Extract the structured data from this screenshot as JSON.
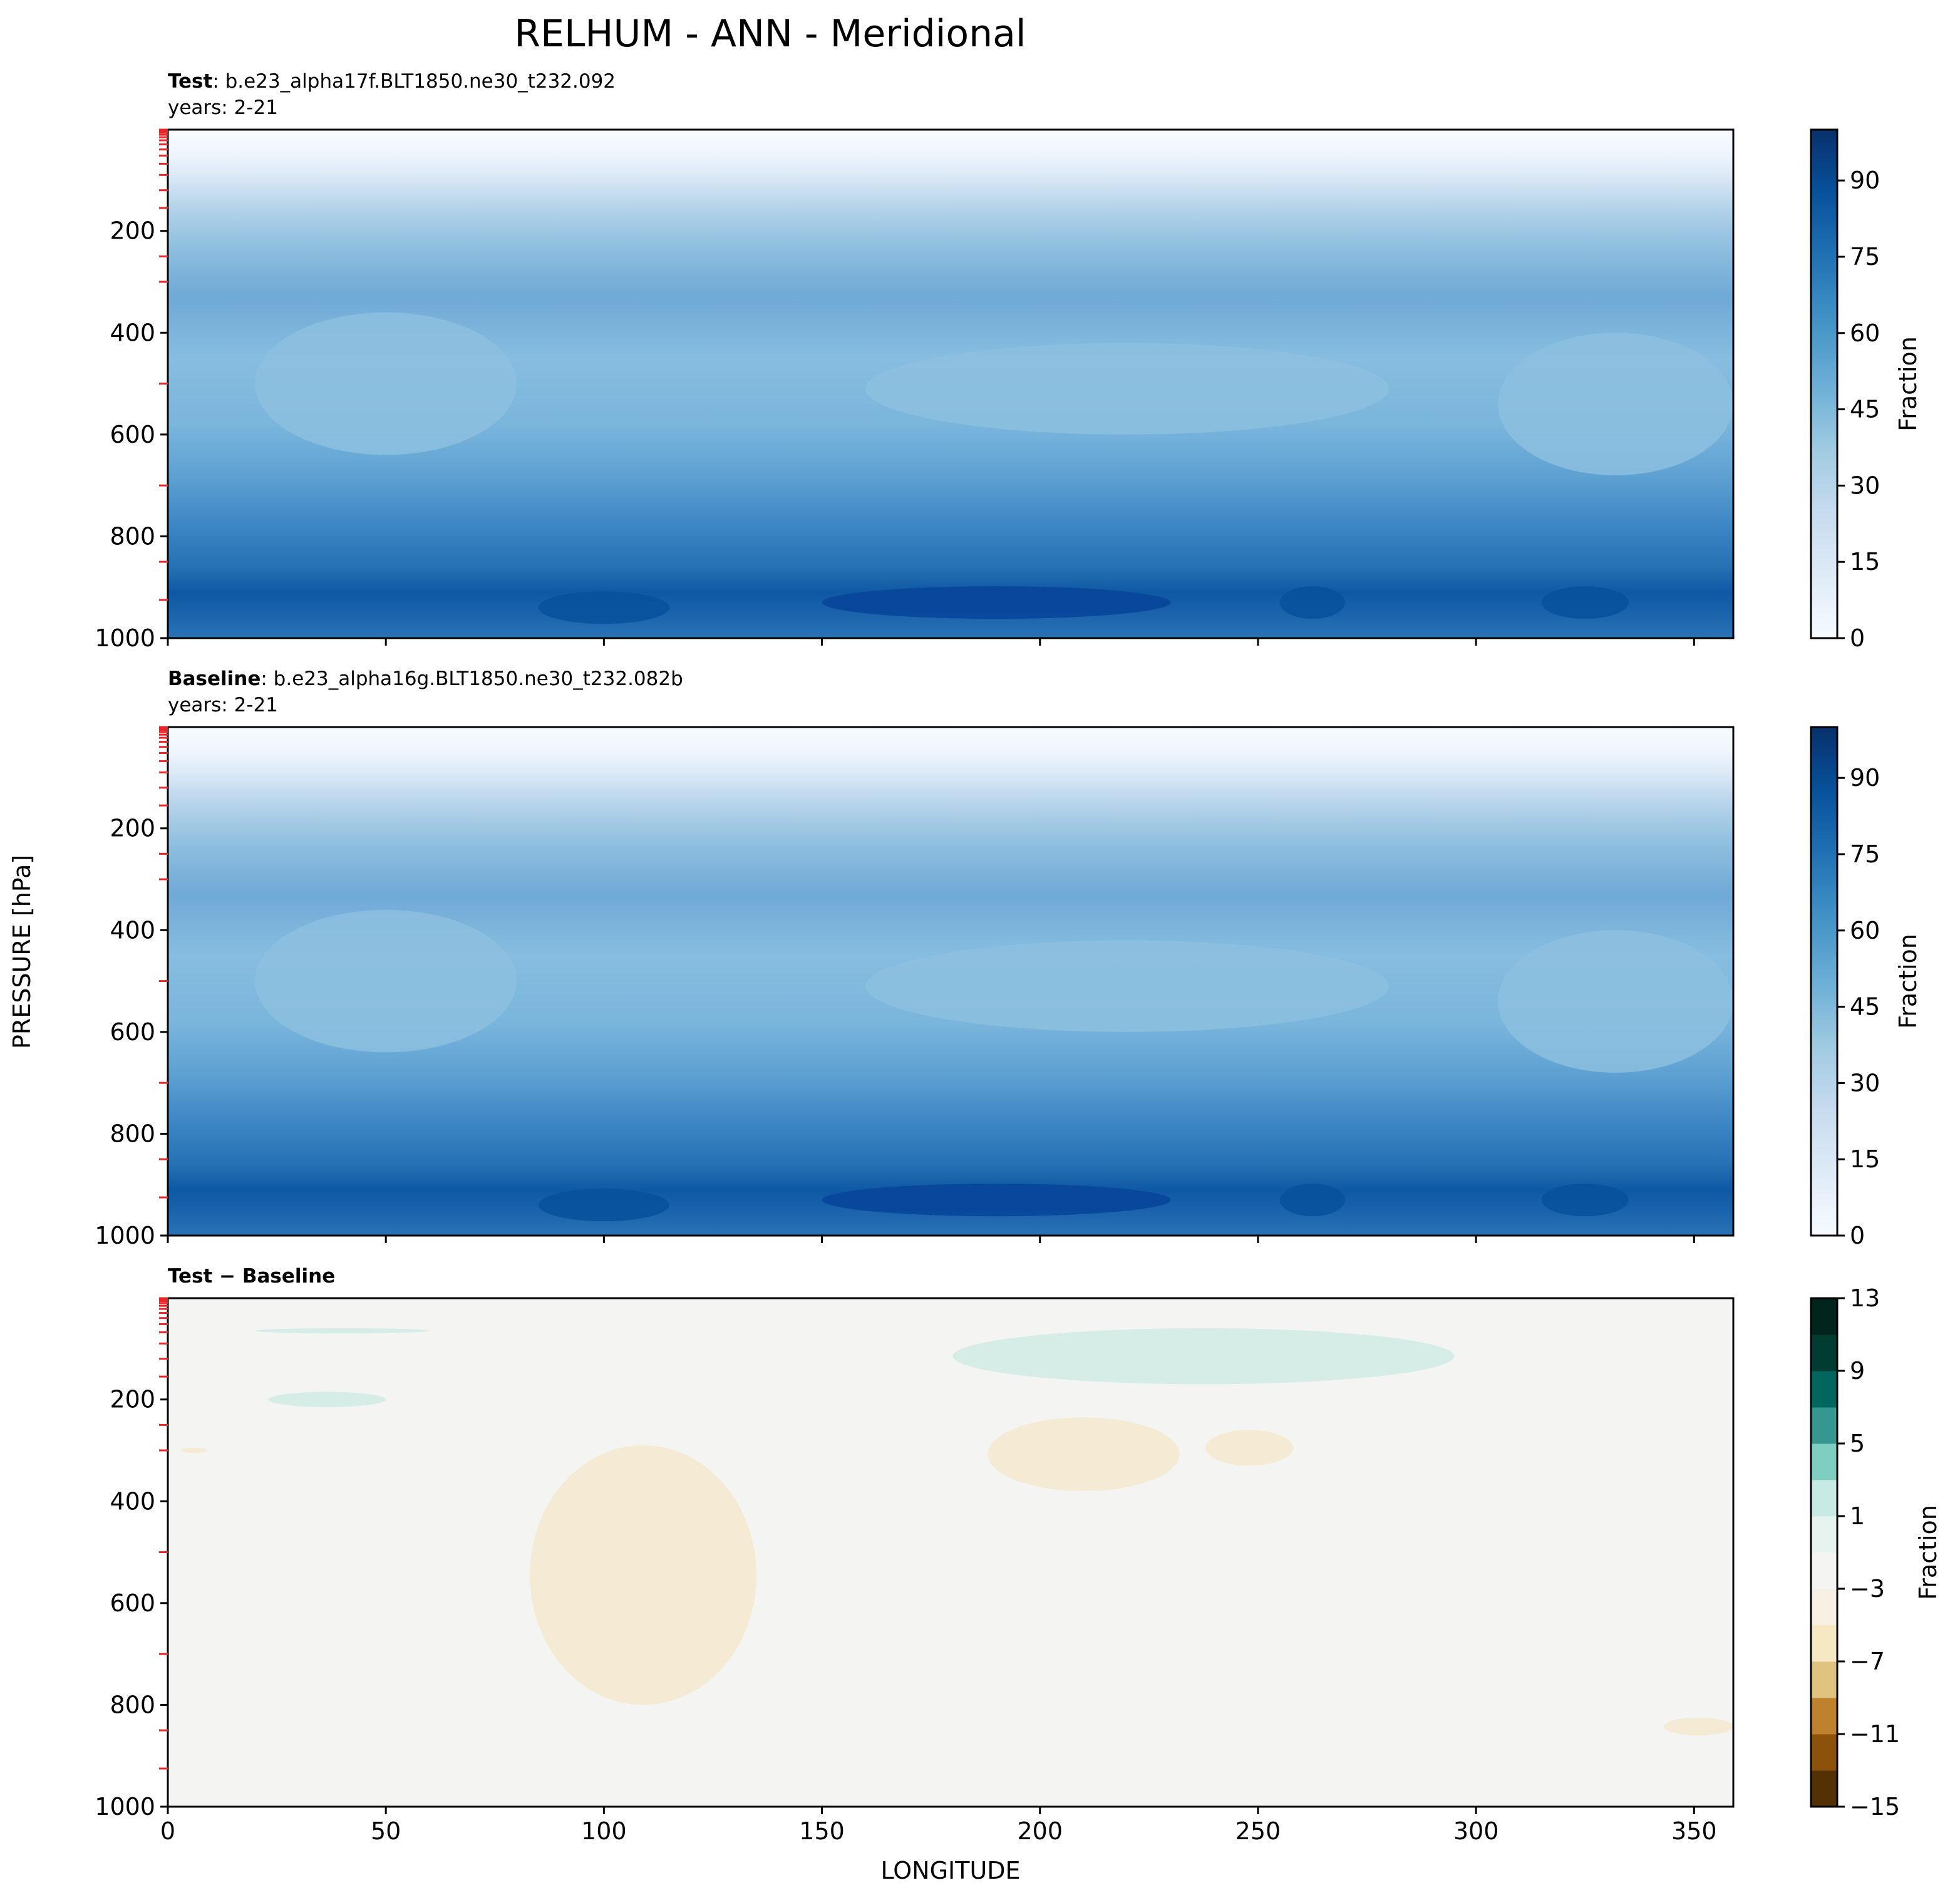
{
  "figure": {
    "title": "RELHUM - ANN - Meridional",
    "ylabel": "PRESSURE [hPa]",
    "xlabel": "LONGITUDE"
  },
  "chart_data": [
    {
      "type": "heatmap",
      "panel": "test",
      "label_bold": "Test",
      "label_text": ": b.e23_alpha17f.BLT1850.ne30_t232.092",
      "years": "years: 2-21",
      "x_range": [
        0,
        359
      ],
      "y_range": [
        1000,
        1
      ],
      "y_ticks": [
        200,
        400,
        600,
        800,
        1000
      ],
      "x_ticks": [
        0,
        50,
        100,
        150,
        200,
        250,
        300,
        350
      ],
      "x_tick_labels_visible": false,
      "colormap": "Blues",
      "colorbar": {
        "label": "Fraction",
        "min": 0,
        "max": 100,
        "levels": [
          0,
          5,
          10,
          15,
          20,
          25,
          30,
          35,
          40,
          45,
          50,
          55,
          60,
          65,
          70,
          75,
          80,
          85,
          90,
          95,
          100
        ],
        "ticks": [
          0,
          15,
          30,
          45,
          60,
          75,
          90
        ]
      },
      "profile": {
        "pressure": [
          1,
          50,
          100,
          150,
          200,
          250,
          300,
          400,
          500,
          600,
          700,
          800,
          850,
          900,
          925,
          950,
          1000
        ],
        "value": [
          2,
          5,
          15,
          30,
          40,
          50,
          55,
          45,
          45,
          50,
          55,
          62,
          67,
          72,
          80,
          82,
          75
        ]
      }
    },
    {
      "type": "heatmap",
      "panel": "baseline",
      "label_bold": "Baseline",
      "label_text": ": b.e23_alpha16g.BLT1850.ne30_t232.082b",
      "years": "years: 2-21",
      "x_range": [
        0,
        359
      ],
      "y_range": [
        1000,
        1
      ],
      "y_ticks": [
        200,
        400,
        600,
        800,
        1000
      ],
      "x_ticks": [
        0,
        50,
        100,
        150,
        200,
        250,
        300,
        350
      ],
      "x_tick_labels_visible": false,
      "colormap": "Blues",
      "colorbar": {
        "label": "Fraction",
        "min": 0,
        "max": 100,
        "levels": [
          0,
          5,
          10,
          15,
          20,
          25,
          30,
          35,
          40,
          45,
          50,
          55,
          60,
          65,
          70,
          75,
          80,
          85,
          90,
          95,
          100
        ],
        "ticks": [
          0,
          15,
          30,
          45,
          60,
          75,
          90
        ]
      },
      "profile": {
        "pressure": [
          1,
          50,
          100,
          150,
          200,
          250,
          300,
          400,
          500,
          600,
          700,
          800,
          850,
          900,
          925,
          950,
          1000
        ],
        "value": [
          2,
          5,
          15,
          30,
          40,
          50,
          55,
          45,
          45,
          50,
          55,
          62,
          67,
          72,
          80,
          82,
          75
        ]
      }
    },
    {
      "type": "heatmap",
      "panel": "difference",
      "label_bold": "Test − Baseline",
      "x_range": [
        0,
        359
      ],
      "y_range": [
        1000,
        1
      ],
      "y_ticks": [
        200,
        400,
        600,
        800,
        1000
      ],
      "x_ticks": [
        0,
        50,
        100,
        150,
        200,
        250,
        300,
        350
      ],
      "x_tick_labels_visible": true,
      "colormap": "BrBG",
      "colorbar": {
        "label": "Fraction",
        "min": -15,
        "max": 13,
        "levels": [
          -15,
          -13,
          -11,
          -9,
          -7,
          -5,
          -3,
          -1,
          1,
          3,
          5,
          7,
          9,
          11,
          13
        ],
        "ticks": [
          -15,
          -11,
          -7,
          -3,
          1,
          5,
          9,
          13
        ]
      },
      "regions": [
        {
          "sign": "positive",
          "lon": [
            180,
            295
          ],
          "pressure": [
            60,
            170
          ]
        },
        {
          "sign": "positive",
          "lon": [
            20,
            60
          ],
          "pressure": [
            60,
            70
          ]
        },
        {
          "sign": "positive",
          "lon": [
            23,
            50
          ],
          "pressure": [
            185,
            215
          ]
        },
        {
          "sign": "negative",
          "lon": [
            83,
            135
          ],
          "pressure": [
            290,
            800
          ]
        },
        {
          "sign": "negative",
          "lon": [
            188,
            232
          ],
          "pressure": [
            235,
            380
          ]
        },
        {
          "sign": "negative",
          "lon": [
            238,
            258
          ],
          "pressure": [
            260,
            330
          ]
        },
        {
          "sign": "negative",
          "lon": [
            3,
            9
          ],
          "pressure": [
            295,
            305
          ]
        },
        {
          "sign": "negative",
          "lon": [
            343,
            359
          ],
          "pressure": [
            825,
            860
          ]
        }
      ]
    }
  ]
}
